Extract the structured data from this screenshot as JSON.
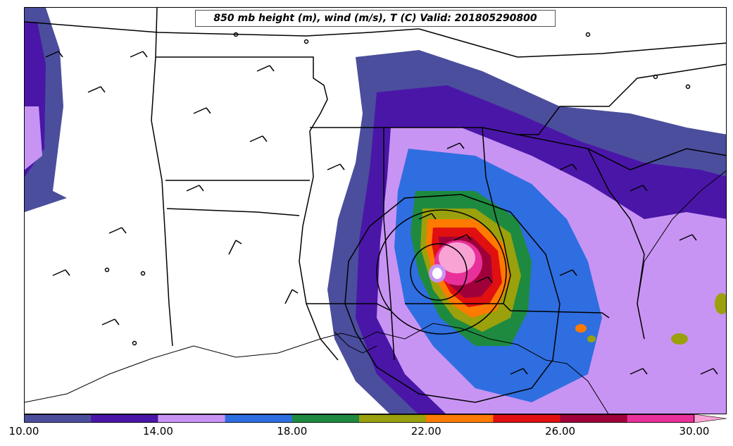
{
  "title": "850 mb height (m), wind (m/s), T (C) Valid: 201805290800",
  "colorbar": {
    "colors": [
      "#4b4e9c",
      "#4a16a8",
      "#c894f4",
      "#2f6ee0",
      "#1e8a3f",
      "#9aa10c",
      "#ff7a00",
      "#e01010",
      "#a0003a",
      "#e8309a",
      "#f9a3d4"
    ],
    "min": 10,
    "max": 30,
    "tick_values": [
      10,
      14,
      18,
      22,
      26,
      30
    ],
    "tick_labels": [
      "10.00",
      "14.00",
      "18.00",
      "22.00",
      "26.00",
      "30.00"
    ],
    "extend": "max"
  },
  "colors": {
    "land": "#ffffff",
    "boundary": "#000000"
  }
}
